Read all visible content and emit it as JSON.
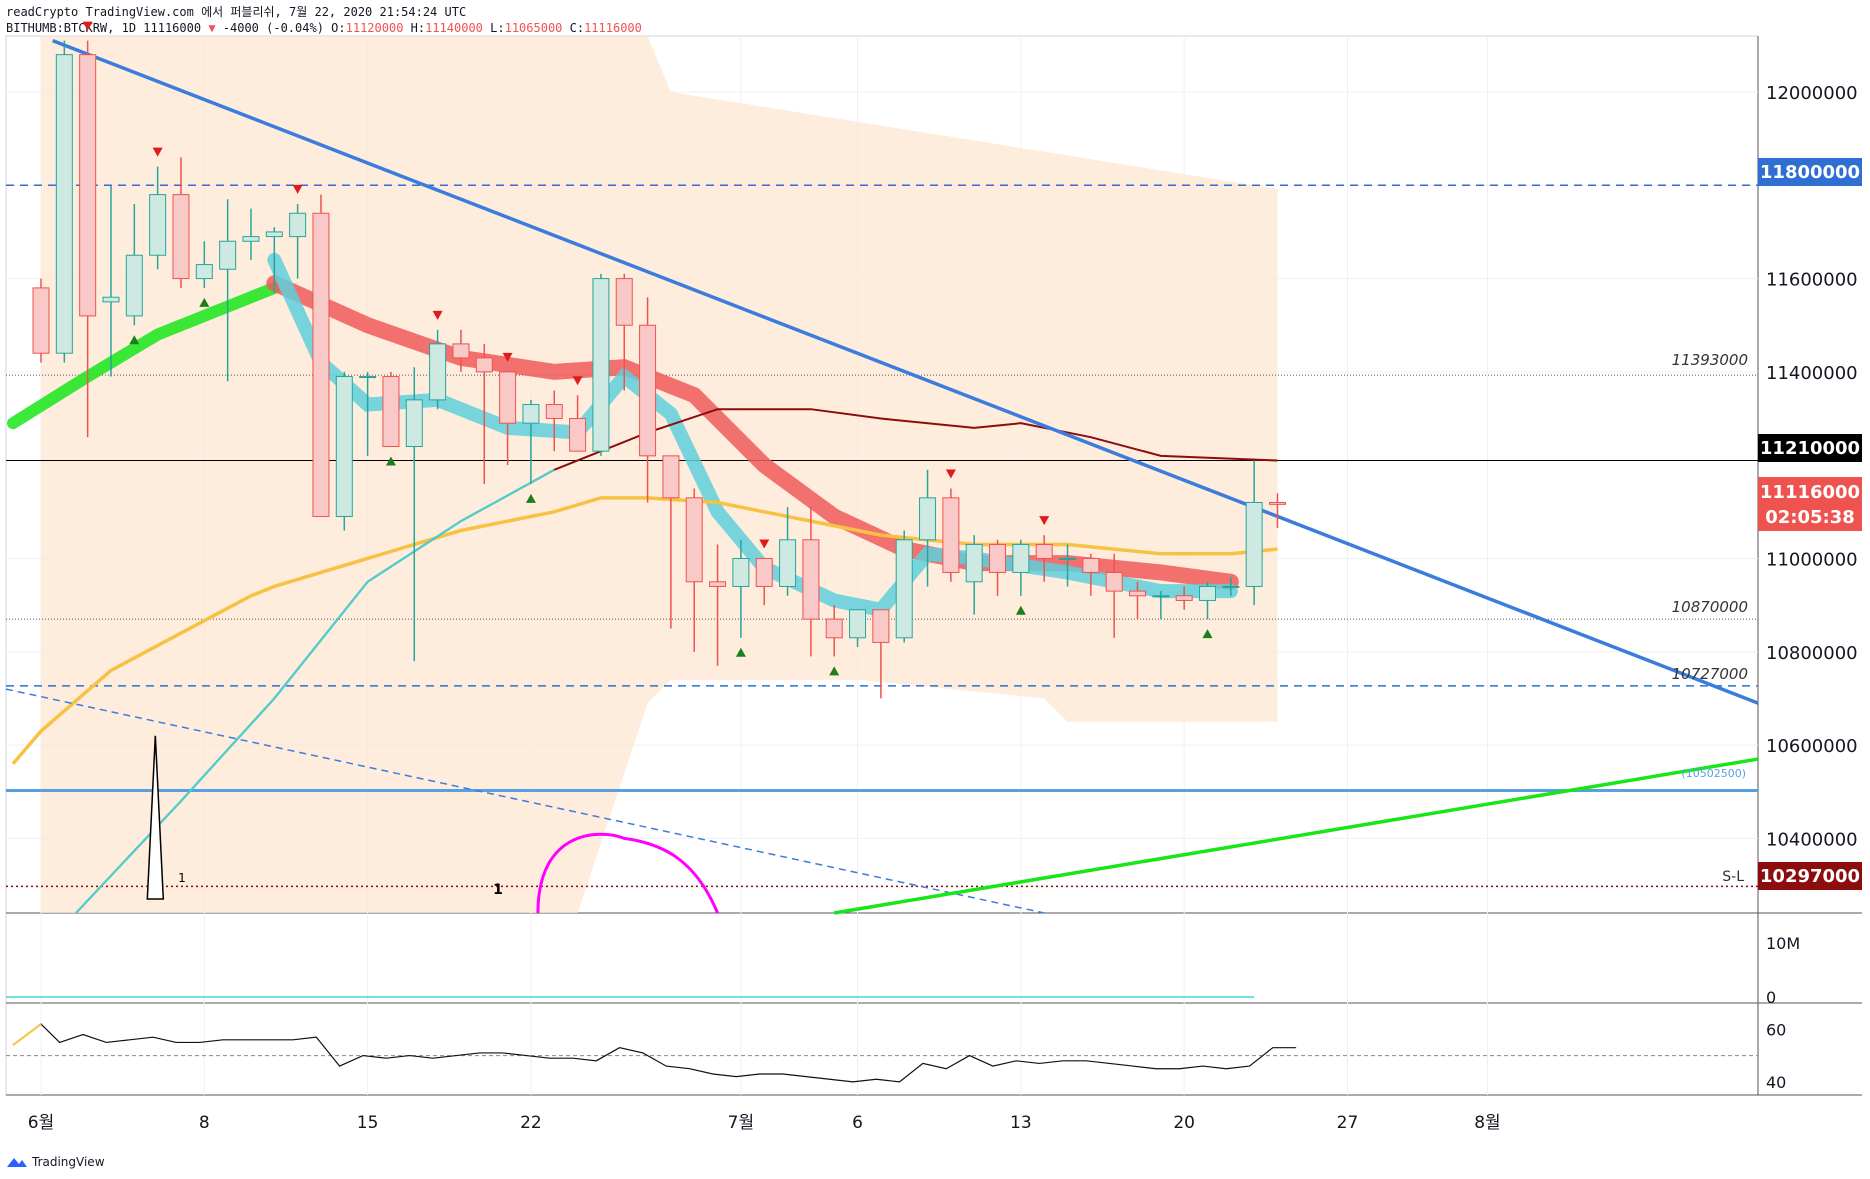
{
  "header": {
    "line1": "readCrypto TradingView.com 에서 퍼블리쉬, 7월 22, 2020 21:54:24 UTC",
    "symbol": "BITHUMB:BTCKRW, 1D",
    "last": "11116000",
    "change": "-4000 (-0.04%)",
    "o_label": "O:",
    "o": "11120000",
    "h_label": "H:",
    "h": "11140000",
    "l_label": "L:",
    "l": "11065000",
    "c_label": "C:",
    "c": "11116000"
  },
  "footer": {
    "brand": "TradingView"
  },
  "colors": {
    "up": "#26a69a",
    "down": "#ef5350",
    "trend": "#3b7ddd",
    "green_trend": "#19e619",
    "band": "#fde5d1",
    "red_ribbon": "#f05a5a",
    "cyan_ribbon": "#5fcfdc",
    "ma_orange": "#f7c242",
    "ma_dark": "#8b0d0d",
    "arc": "#ff00ff"
  },
  "chart_data": {
    "type": "candlestick",
    "y_axis": {
      "min": 10240000,
      "max": 12120000,
      "ticks": [
        "12000000",
        "11800000",
        "11600000",
        "11400000",
        "11210000",
        "11116000",
        "11000000",
        "10800000",
        "10600000",
        "10400000",
        "10297000"
      ],
      "tick_values": [
        12000000,
        11800000,
        11600000,
        11400000,
        11210000,
        11116000,
        11000000,
        10800000,
        10600000,
        10400000,
        10297000
      ]
    },
    "x_axis": {
      "labels": [
        "6월",
        "8",
        "15",
        "22",
        "7월",
        "6",
        "13",
        "20",
        "27",
        "8월"
      ],
      "label_index": [
        0,
        7,
        14,
        21,
        30,
        35,
        42,
        49,
        56,
        62
      ]
    },
    "price_labels": {
      "level_11800000": "11800000",
      "current_close": "11210000",
      "last_price": "11116000",
      "countdown": "02:05:38",
      "stop": "10297000",
      "stop_tag": "S-L"
    },
    "level_texts": [
      "11393000",
      "10870000",
      "10727000",
      "(10502500)"
    ],
    "markers": [
      "1",
      "1"
    ],
    "candles": [
      {
        "o": 11580000,
        "h": 11600000,
        "l": 11420000,
        "c": 11440000
      },
      {
        "o": 11440000,
        "h": 12110000,
        "l": 11420000,
        "c": 12080000
      },
      {
        "o": 12080000,
        "h": 12110000,
        "l": 11260000,
        "c": 11520000
      },
      {
        "o": 11550000,
        "h": 11800000,
        "l": 11390000,
        "c": 11560000
      },
      {
        "o": 11520000,
        "h": 11760000,
        "l": 11500000,
        "c": 11650000
      },
      {
        "o": 11650000,
        "h": 11840000,
        "l": 11620000,
        "c": 11780000
      },
      {
        "o": 11780000,
        "h": 11860000,
        "l": 11580000,
        "c": 11600000
      },
      {
        "o": 11600000,
        "h": 11680000,
        "l": 11580000,
        "c": 11630000
      },
      {
        "o": 11620000,
        "h": 11770000,
        "l": 11380000,
        "c": 11680000
      },
      {
        "o": 11680000,
        "h": 11750000,
        "l": 11640000,
        "c": 11690000
      },
      {
        "o": 11690000,
        "h": 11710000,
        "l": 11570000,
        "c": 11700000
      },
      {
        "o": 11690000,
        "h": 11760000,
        "l": 11600000,
        "c": 11740000
      },
      {
        "o": 11740000,
        "h": 11780000,
        "l": 11100000,
        "c": 11090000
      },
      {
        "o": 11090000,
        "h": 11400000,
        "l": 11060000,
        "c": 11390000
      },
      {
        "o": 11390000,
        "h": 11400000,
        "l": 11220000,
        "c": 11390000
      },
      {
        "o": 11390000,
        "h": 11400000,
        "l": 11240000,
        "c": 11240000
      },
      {
        "o": 11240000,
        "h": 11410000,
        "l": 10780000,
        "c": 11340000
      },
      {
        "o": 11340000,
        "h": 11490000,
        "l": 11320000,
        "c": 11460000
      },
      {
        "o": 11460000,
        "h": 11490000,
        "l": 11400000,
        "c": 11430000
      },
      {
        "o": 11430000,
        "h": 11460000,
        "l": 11160000,
        "c": 11400000
      },
      {
        "o": 11400000,
        "h": 11400000,
        "l": 11200000,
        "c": 11290000
      },
      {
        "o": 11290000,
        "h": 11340000,
        "l": 11160000,
        "c": 11330000
      },
      {
        "o": 11330000,
        "h": 11360000,
        "l": 11230000,
        "c": 11300000
      },
      {
        "o": 11300000,
        "h": 11350000,
        "l": 11230000,
        "c": 11230000
      },
      {
        "o": 11230000,
        "h": 11610000,
        "l": 11220000,
        "c": 11600000
      },
      {
        "o": 11600000,
        "h": 11610000,
        "l": 11360000,
        "c": 11500000
      },
      {
        "o": 11500000,
        "h": 11560000,
        "l": 11120000,
        "c": 11220000
      },
      {
        "o": 11220000,
        "h": 11220000,
        "l": 10850000,
        "c": 11130000
      },
      {
        "o": 11130000,
        "h": 11150000,
        "l": 10800000,
        "c": 10950000
      },
      {
        "o": 10950000,
        "h": 11030000,
        "l": 10770000,
        "c": 10940000
      },
      {
        "o": 10940000,
        "h": 11040000,
        "l": 10830000,
        "c": 11000000
      },
      {
        "o": 11000000,
        "h": 11000000,
        "l": 10900000,
        "c": 10940000
      },
      {
        "o": 10940000,
        "h": 11110000,
        "l": 10920000,
        "c": 11040000
      },
      {
        "o": 11040000,
        "h": 11110000,
        "l": 10790000,
        "c": 10870000
      },
      {
        "o": 10870000,
        "h": 10900000,
        "l": 10790000,
        "c": 10830000
      },
      {
        "o": 10830000,
        "h": 10890000,
        "l": 10810000,
        "c": 10890000
      },
      {
        "o": 10890000,
        "h": 10890000,
        "l": 10700000,
        "c": 10820000
      },
      {
        "o": 10830000,
        "h": 11060000,
        "l": 10820000,
        "c": 11040000
      },
      {
        "o": 11040000,
        "h": 11190000,
        "l": 10940000,
        "c": 11130000
      },
      {
        "o": 11130000,
        "h": 11150000,
        "l": 10950000,
        "c": 10970000
      },
      {
        "o": 10950000,
        "h": 11050000,
        "l": 10880000,
        "c": 11030000
      },
      {
        "o": 11030000,
        "h": 11040000,
        "l": 10920000,
        "c": 10970000
      },
      {
        "o": 10970000,
        "h": 11040000,
        "l": 10920000,
        "c": 11030000
      },
      {
        "o": 11030000,
        "h": 11050000,
        "l": 10950000,
        "c": 11000000
      },
      {
        "o": 11000000,
        "h": 11030000,
        "l": 10940000,
        "c": 11000000
      },
      {
        "o": 11000000,
        "h": 11010000,
        "l": 10920000,
        "c": 10970000
      },
      {
        "o": 10970000,
        "h": 11010000,
        "l": 10830000,
        "c": 10930000
      },
      {
        "o": 10930000,
        "h": 10950000,
        "l": 10870000,
        "c": 10920000
      },
      {
        "o": 10920000,
        "h": 10930000,
        "l": 10870000,
        "c": 10920000
      },
      {
        "o": 10920000,
        "h": 10940000,
        "l": 10890000,
        "c": 10910000
      },
      {
        "o": 10910000,
        "h": 10950000,
        "l": 10870000,
        "c": 10940000
      },
      {
        "o": 10940000,
        "h": 10960000,
        "l": 10920000,
        "c": 10940000
      },
      {
        "o": 10940000,
        "h": 11210000,
        "l": 10900000,
        "c": 11120000
      },
      {
        "o": 11120000,
        "h": 11140000,
        "l": 11065000,
        "c": 11116000
      }
    ],
    "volume": {
      "tick_labels": [
        "10M",
        "0"
      ]
    },
    "rsi": {
      "tick_labels": [
        "60",
        "40"
      ],
      "values": [
        55,
        58,
        55,
        56,
        57,
        55,
        55,
        56,
        56,
        56,
        56,
        57,
        46,
        50,
        49,
        50,
        49,
        50,
        51,
        51,
        50,
        49,
        49,
        48,
        53,
        51,
        46,
        45,
        43,
        42,
        43,
        43,
        42,
        41,
        40,
        41,
        40,
        47,
        45,
        50,
        46,
        48,
        47,
        48,
        48,
        47,
        46,
        45,
        45,
        46,
        45,
        46,
        53,
        53
      ]
    }
  }
}
